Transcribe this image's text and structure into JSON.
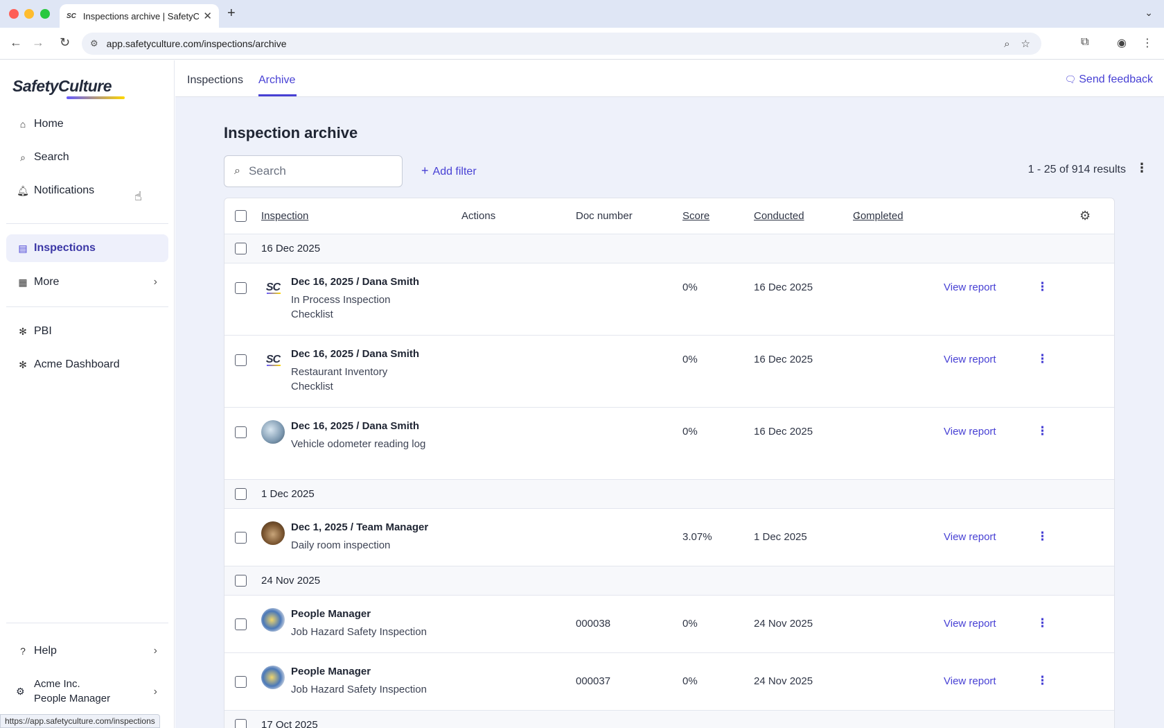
{
  "browser": {
    "tab_title": "Inspections archive | SafetyCu",
    "favicon_text": "SC",
    "url": "app.safetyculture.com/inspections/archive",
    "status_url": "https://app.safetyculture.com/inspections"
  },
  "sidebar": {
    "logo": "SafetyCulture",
    "items": [
      {
        "label": "Home",
        "icon": "home-icon"
      },
      {
        "label": "Search",
        "icon": "search-icon"
      },
      {
        "label": "Notifications",
        "icon": "bell-icon"
      },
      {
        "label": "Inspections",
        "icon": "clipboard-icon"
      },
      {
        "label": "More",
        "icon": "grid-icon"
      },
      {
        "label": "PBI",
        "icon": "puzzle-icon"
      },
      {
        "label": "Acme Dashboard",
        "icon": "puzzle-icon"
      }
    ],
    "help": "Help",
    "account_org": "Acme Inc.",
    "account_user": "People Manager"
  },
  "subnav": {
    "tabs": [
      "Inspections",
      "Archive"
    ],
    "active_tab": "Archive",
    "feedback": "Send feedback"
  },
  "page": {
    "title": "Inspection archive",
    "search_placeholder": "Search",
    "add_filter": "Add filter",
    "results": "1 - 25 of 914 results"
  },
  "table": {
    "headers": {
      "inspection": "Inspection",
      "actions": "Actions",
      "doc_number": "Doc number",
      "score": "Score",
      "conducted": "Conducted",
      "completed": "Completed"
    },
    "groups": [
      {
        "date": "16 Dec 2025",
        "items": [
          {
            "title": "Dec 16, 2025 / Dana Smith",
            "subtitle": "In Process Inspection Checklist",
            "doc": "",
            "score": "0%",
            "conducted": "16 Dec 2025",
            "action": "View report",
            "thumb": "sc-logo"
          },
          {
            "title": "Dec 16, 2025 / Dana Smith",
            "subtitle": "Restaurant Inventory Checklist",
            "doc": "",
            "score": "0%",
            "conducted": "16 Dec 2025",
            "action": "View report",
            "thumb": "sc-logo"
          },
          {
            "title": "Dec 16, 2025 / Dana Smith",
            "subtitle": "Vehicle odometer reading log",
            "doc": "",
            "score": "0%",
            "conducted": "16 Dec 2025",
            "action": "View report",
            "thumb": "vehicle-photo"
          }
        ]
      },
      {
        "date": "1 Dec 2025",
        "items": [
          {
            "title": "Dec 1, 2025 / Team Manager",
            "subtitle": "Daily room inspection",
            "doc": "",
            "score": "3.07%",
            "conducted": "1 Dec 2025",
            "action": "View report",
            "thumb": "room-photo"
          }
        ]
      },
      {
        "date": "24 Nov 2025",
        "items": [
          {
            "title": "People Manager",
            "subtitle": "Job Hazard Safety Inspection",
            "doc": "000038",
            "score": "0%",
            "conducted": "24 Nov 2025",
            "action": "View report",
            "thumb": "people-photo"
          },
          {
            "title": "People Manager",
            "subtitle": "Job Hazard Safety Inspection",
            "doc": "000037",
            "score": "0%",
            "conducted": "24 Nov 2025",
            "action": "View report",
            "thumb": "people-photo"
          }
        ]
      },
      {
        "date": "17 Oct 2025",
        "items": []
      }
    ]
  }
}
